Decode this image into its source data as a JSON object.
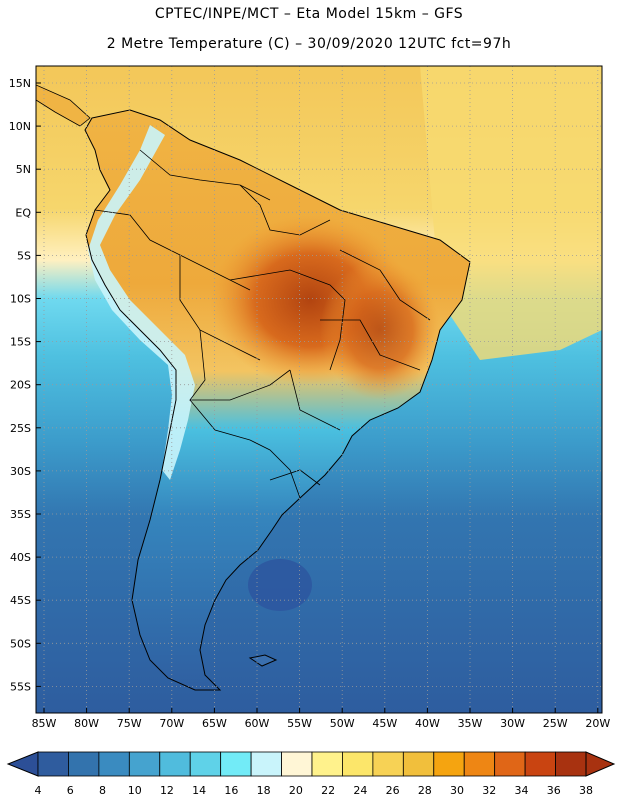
{
  "header": {
    "line1": "CPTEC/INPE/MCT –  Eta Model 15km – GFS",
    "line2": "2 Metre Temperature (C) – 30/09/2020 12UTC fct=97h"
  },
  "axes": {
    "lat_labels": [
      "15N",
      "10N",
      "5N",
      "EQ",
      "5S",
      "10S",
      "15S",
      "20S",
      "25S",
      "30S",
      "35S",
      "40S",
      "45S",
      "50S",
      "55S"
    ],
    "lon_labels": [
      "85W",
      "80W",
      "75W",
      "70W",
      "65W",
      "60W",
      "55W",
      "50W",
      "45W",
      "40W",
      "35W",
      "30W",
      "25W",
      "20W"
    ]
  },
  "legend": {
    "values": [
      "4",
      "6",
      "8",
      "10",
      "12",
      "14",
      "16",
      "18",
      "20",
      "22",
      "24",
      "26",
      "28",
      "30",
      "32",
      "34",
      "36",
      "38"
    ],
    "colors": [
      "#2f5c9e",
      "#3373ad",
      "#3a8bc0",
      "#45a3cf",
      "#50bcdd",
      "#5fd2e8",
      "#72ebf7",
      "#c9f4fb",
      "#fff6d6",
      "#fff28c",
      "#fce66a",
      "#f7d255",
      "#f1bf3c",
      "#f5a410",
      "#ee8614",
      "#e06617",
      "#c94411",
      "#a83210"
    ],
    "low_arrow_color": "#2c4f97",
    "high_arrow_color": "#a83210"
  },
  "map": {
    "ocean_north_color": "#f6d36a",
    "ocean_south_color": "#2f5c9e",
    "land_hot_color": "#d06a1e",
    "land_warm_color": "#efb143",
    "andes_color": "#c9f4fb"
  }
}
